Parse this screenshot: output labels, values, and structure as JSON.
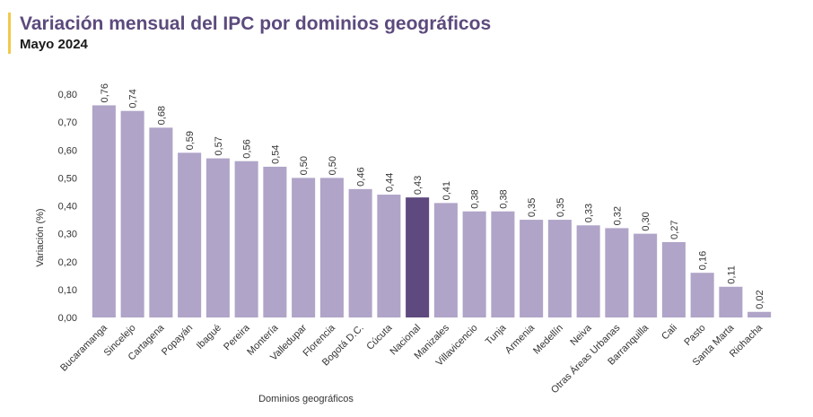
{
  "header": {
    "title": "Variación mensual del IPC por dominios geográficos",
    "subtitle": "Mayo 2024"
  },
  "colors": {
    "bar": "#b0a4c8",
    "highlight": "#5e4a7e",
    "title": "#5c4a7d",
    "accent_line": "#f2c94c"
  },
  "chart_data": {
    "type": "bar",
    "title": "Variación mensual del IPC por dominios geográficos",
    "subtitle": "Mayo 2024",
    "xlabel": "Dominios geográficos",
    "ylabel": "Variación (%)",
    "ylim": [
      0,
      0.8
    ],
    "yticks": [
      0,
      0.1,
      0.2,
      0.3,
      0.4,
      0.5,
      0.6,
      0.7,
      0.8
    ],
    "ytick_labels": [
      "0,00",
      "0,10",
      "0,20",
      "0,30",
      "0,40",
      "0,50",
      "0,60",
      "0,70",
      "0,80"
    ],
    "grid": false,
    "categories": [
      "Bucaramanga",
      "Sincelejo",
      "Cartagena",
      "Popayán",
      "Ibagué",
      "Pereira",
      "Montería",
      "Valledupar",
      "Florencia",
      "Bogotá D.C.",
      "Cúcuta",
      "Nacional",
      "Manizales",
      "Villavicencio",
      "Tunja",
      "Armenia",
      "Medellín",
      "Neiva",
      "Otras Áreas Urbanas",
      "Barranquilla",
      "Cali",
      "Pasto",
      "Santa Marta",
      "Riohacha"
    ],
    "values": [
      0.76,
      0.74,
      0.68,
      0.59,
      0.57,
      0.56,
      0.54,
      0.5,
      0.5,
      0.46,
      0.44,
      0.43,
      0.41,
      0.38,
      0.38,
      0.35,
      0.35,
      0.33,
      0.32,
      0.3,
      0.27,
      0.16,
      0.11,
      0.02
    ],
    "value_labels": [
      "0,76",
      "0,74",
      "0,68",
      "0,59",
      "0,57",
      "0,56",
      "0,54",
      "0,50",
      "0,50",
      "0,46",
      "0,44",
      "0,43",
      "0,41",
      "0,38",
      "0,38",
      "0,35",
      "0,35",
      "0,33",
      "0,32",
      "0,30",
      "0,27",
      "0,16",
      "0,11",
      "0,02"
    ],
    "highlight_category": "Nacional"
  }
}
